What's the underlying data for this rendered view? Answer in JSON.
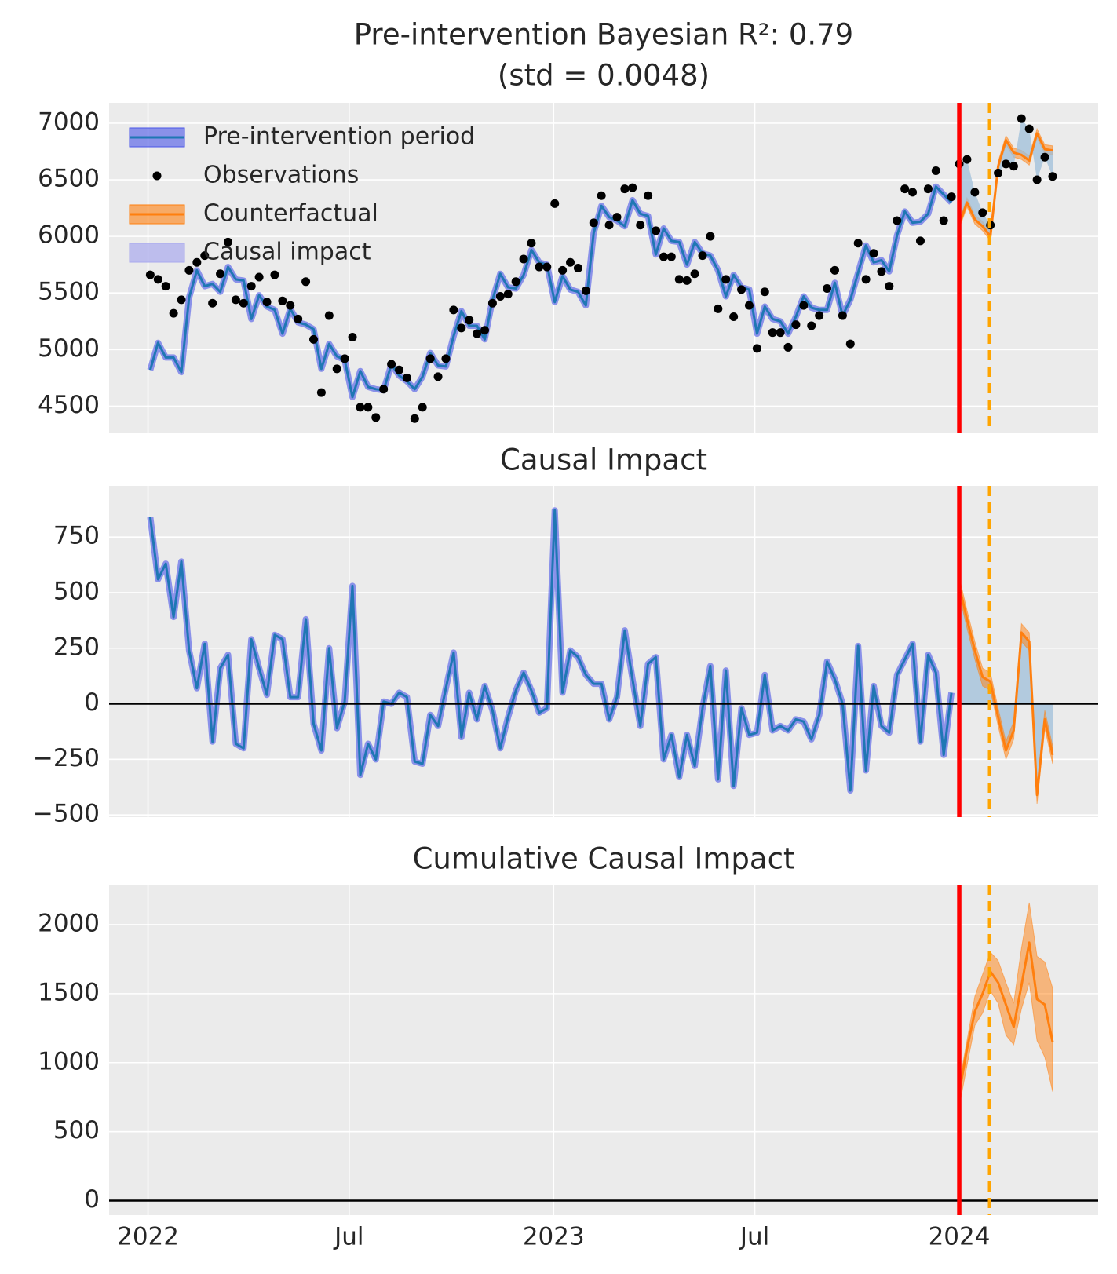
{
  "chart_data": [
    {
      "type": "line",
      "title": "Pre-intervention Bayesian R²: 0.79",
      "subtitle": "(std = 0.0048)",
      "x": [
        "2022-01-03",
        "2022-01-10",
        "2022-01-17",
        "2022-01-24",
        "2022-01-31",
        "2022-02-07",
        "2022-02-14",
        "2022-02-21",
        "2022-02-28",
        "2022-03-07",
        "2022-03-14",
        "2022-03-21",
        "2022-03-28",
        "2022-04-04",
        "2022-04-11",
        "2022-04-18",
        "2022-04-25",
        "2022-05-02",
        "2022-05-09",
        "2022-05-16",
        "2022-05-23",
        "2022-05-30",
        "2022-06-06",
        "2022-06-13",
        "2022-06-20",
        "2022-06-27",
        "2022-07-04",
        "2022-07-11",
        "2022-07-18",
        "2022-07-25",
        "2022-08-01",
        "2022-08-08",
        "2022-08-15",
        "2022-08-22",
        "2022-08-29",
        "2022-09-05",
        "2022-09-12",
        "2022-09-19",
        "2022-09-26",
        "2022-10-03",
        "2022-10-10",
        "2022-10-17",
        "2022-10-24",
        "2022-10-31",
        "2022-11-07",
        "2022-11-14",
        "2022-11-21",
        "2022-11-28",
        "2022-12-05",
        "2022-12-12",
        "2022-12-19",
        "2022-12-26",
        "2023-01-02",
        "2023-01-09",
        "2023-01-16",
        "2023-01-23",
        "2023-01-30",
        "2023-02-06",
        "2023-02-13",
        "2023-02-20",
        "2023-02-27",
        "2023-03-06",
        "2023-03-13",
        "2023-03-20",
        "2023-03-27",
        "2023-04-03",
        "2023-04-10",
        "2023-04-17",
        "2023-04-24",
        "2023-05-01",
        "2023-05-08",
        "2023-05-15",
        "2023-05-22",
        "2023-05-29",
        "2023-06-05",
        "2023-06-12",
        "2023-06-19",
        "2023-06-26",
        "2023-07-03",
        "2023-07-10",
        "2023-07-17",
        "2023-07-24",
        "2023-07-31",
        "2023-08-07",
        "2023-08-14",
        "2023-08-21",
        "2023-08-28",
        "2023-09-04",
        "2023-09-11",
        "2023-09-18",
        "2023-09-25",
        "2023-10-02",
        "2023-10-09",
        "2023-10-16",
        "2023-10-23",
        "2023-10-30",
        "2023-11-06",
        "2023-11-13",
        "2023-11-20",
        "2023-11-27",
        "2023-12-04",
        "2023-12-11",
        "2023-12-18",
        "2023-12-25",
        "2024-01-01",
        "2024-01-08",
        "2024-01-15",
        "2024-01-22",
        "2024-01-29",
        "2024-02-05",
        "2024-02-12",
        "2024-02-19",
        "2024-02-26",
        "2024-03-04",
        "2024-03-11",
        "2024-03-18",
        "2024-03-25"
      ],
      "xlim": [
        "2021-11-27",
        "2024-05-05"
      ],
      "xticks": [
        {
          "value": "2022-01-01",
          "label": "2022"
        },
        {
          "value": "2022-07-01",
          "label": "Jul"
        },
        {
          "value": "2023-01-01",
          "label": "2023"
        },
        {
          "value": "2023-07-01",
          "label": "Jul"
        },
        {
          "value": "2024-01-01",
          "label": "2024"
        }
      ],
      "ylim": [
        4260,
        7180
      ],
      "yticks": [
        4500,
        5000,
        5500,
        6000,
        6500,
        7000
      ],
      "grid": true,
      "legend": "upper left",
      "intervention_lines": [
        {
          "x": "2024-01-01",
          "color": "#ff0000",
          "linestyle": "solid"
        },
        {
          "x": "2024-01-28",
          "color": "#ffa500",
          "linestyle": "dashed"
        }
      ],
      "series": [
        {
          "name": "Pre-intervention period",
          "color": "#1f77b4",
          "band_color": "#4a55e8",
          "values": [
            4820,
            5060,
            4930,
            4930,
            4800,
            5460,
            5700,
            5560,
            5580,
            5510,
            5730,
            5620,
            5610,
            5270,
            5480,
            5380,
            5350,
            5140,
            5360,
            5240,
            5220,
            5180,
            4830,
            5050,
            4940,
            4910,
            4580,
            4810,
            4670,
            4650,
            4640,
            4870,
            4770,
            4720,
            4650,
            4760,
            4970,
            4860,
            4850,
            5120,
            5340,
            5210,
            5210,
            5090,
            5440,
            5670,
            5550,
            5540,
            5660,
            5880,
            5770,
            5750,
            5420,
            5650,
            5530,
            5510,
            5390,
            6030,
            6270,
            6170,
            6140,
            6090,
            6320,
            6200,
            6180,
            5840,
            6070,
            5960,
            5950,
            5750,
            5950,
            5850,
            5830,
            5700,
            5470,
            5660,
            5550,
            5530,
            5140,
            5380,
            5270,
            5250,
            5140,
            5290,
            5470,
            5370,
            5350,
            5350,
            5590,
            5300,
            5440,
            5680,
            5920,
            5770,
            5790,
            5690,
            6010,
            6220,
            6120,
            6130,
            6200,
            6440,
            6370,
            6300,
            null,
            null,
            null,
            null,
            null,
            null,
            null,
            null,
            null,
            null,
            null,
            null,
            null
          ]
        },
        {
          "name": "Observations",
          "type": "scatter",
          "color": "#000000",
          "values": [
            5660,
            5620,
            5560,
            5320,
            5440,
            5700,
            5770,
            5830,
            5410,
            5670,
            5950,
            5440,
            5410,
            5560,
            5640,
            5420,
            5660,
            5430,
            5390,
            5270,
            5600,
            5090,
            4620,
            5300,
            4830,
            4920,
            5110,
            4490,
            4490,
            4400,
            4650,
            4870,
            4820,
            4750,
            4390,
            4490,
            4920,
            4760,
            4920,
            5350,
            5190,
            5260,
            5140,
            5170,
            5410,
            5470,
            5490,
            5600,
            5800,
            5940,
            5730,
            5730,
            6290,
            5700,
            5770,
            5720,
            5520,
            6120,
            6360,
            6100,
            6170,
            6420,
            6430,
            6100,
            6360,
            6050,
            5820,
            5820,
            5620,
            5610,
            5670,
            5830,
            6000,
            5360,
            5620,
            5290,
            5530,
            5390,
            5010,
            5510,
            5150,
            5150,
            5020,
            5220,
            5390,
            5210,
            5300,
            5540,
            5700,
            5300,
            5050,
            5940,
            5620,
            5850,
            5690,
            5560,
            6140,
            6420,
            6390,
            5960,
            6420,
            6580,
            6140,
            6350,
            6640,
            6680,
            6390,
            6210,
            6100,
            6560,
            6640,
            6620,
            7040,
            6950,
            6500,
            6700,
            6530
          ]
        },
        {
          "name": "Counterfactual",
          "color": "#ff7f0e",
          "x": [
            "2024-01-01",
            "2024-01-08",
            "2024-01-15",
            "2024-01-22",
            "2024-01-29",
            "2024-02-05",
            "2024-02-12",
            "2024-02-19",
            "2024-02-26",
            "2024-03-04",
            "2024-03-11",
            "2024-03-18",
            "2024-03-25"
          ],
          "values": [
            6110,
            6300,
            6150,
            6090,
            6000,
            6620,
            6850,
            6740,
            6720,
            6670,
            6910,
            6770,
            6760
          ],
          "lower": [
            6070,
            6260,
            6110,
            6050,
            5960,
            6580,
            6810,
            6700,
            6680,
            6630,
            6870,
            6730,
            6720
          ],
          "upper": [
            6150,
            6340,
            6190,
            6130,
            6040,
            6660,
            6890,
            6780,
            6760,
            6710,
            6950,
            6810,
            6800
          ]
        },
        {
          "name": "Causal impact",
          "type": "area",
          "color": "#a9a9ee",
          "fill": "#9fbfda"
        }
      ]
    },
    {
      "type": "line",
      "title": "Causal Impact",
      "sharex": true,
      "ylim": [
        -510,
        980
      ],
      "yticks": [
        {
          "value": -500,
          "label": "−500"
        },
        {
          "value": -250,
          "label": "−250"
        },
        0,
        250,
        500,
        750
      ],
      "grid": true,
      "hline": 0,
      "series": [
        {
          "color": "#1f77b4",
          "band_color": "#4a55e8",
          "values": [
            840,
            560,
            630,
            390,
            640,
            240,
            70,
            270,
            -170,
            160,
            220,
            -180,
            -200,
            290,
            160,
            40,
            310,
            290,
            30,
            30,
            380,
            -90,
            -210,
            250,
            -110,
            10,
            530,
            -320,
            -180,
            -250,
            10,
            0,
            50,
            30,
            -260,
            -270,
            -50,
            -100,
            70,
            230,
            -150,
            50,
            -70,
            80,
            -30,
            -200,
            -60,
            60,
            140,
            60,
            -40,
            -20,
            870,
            50,
            240,
            210,
            130,
            90,
            90,
            -70,
            30,
            330,
            110,
            -100,
            180,
            210,
            -250,
            -140,
            -330,
            -140,
            -280,
            -20,
            170,
            -340,
            150,
            -370,
            -20,
            -140,
            -130,
            130,
            -120,
            -100,
            -120,
            -70,
            -80,
            -160,
            -50,
            190,
            110,
            0,
            -390,
            260,
            -300,
            80,
            -100,
            -130,
            130,
            200,
            270,
            -170,
            220,
            140,
            -230,
            50,
            null,
            null,
            null,
            null,
            null,
            null,
            null,
            null,
            null,
            null,
            null,
            null,
            null
          ]
        },
        {
          "color": "#ff7f0e",
          "fill": "#9fbfda",
          "fill_to_zero": true,
          "x": [
            "2024-01-01",
            "2024-01-08",
            "2024-01-15",
            "2024-01-22",
            "2024-01-29",
            "2024-02-05",
            "2024-02-12",
            "2024-02-19",
            "2024-02-26",
            "2024-03-04",
            "2024-03-11",
            "2024-03-18",
            "2024-03-25"
          ],
          "values": [
            530,
            380,
            240,
            120,
            100,
            -60,
            -210,
            -120,
            320,
            280,
            -410,
            -70,
            -230
          ],
          "lower": [
            490,
            340,
            200,
            80,
            60,
            -100,
            -250,
            -160,
            280,
            240,
            -450,
            -110,
            -270
          ],
          "upper": [
            570,
            420,
            280,
            160,
            140,
            -20,
            -170,
            -80,
            360,
            320,
            -370,
            -30,
            -190
          ]
        }
      ]
    },
    {
      "type": "line",
      "title": "Cumulative Causal Impact",
      "sharex": true,
      "ylim": [
        -105,
        2290
      ],
      "yticks": [
        0,
        500,
        1000,
        1500,
        2000
      ],
      "grid": true,
      "hline": 0,
      "series": [
        {
          "color": "#ff7f0e",
          "x": [
            "2024-01-01",
            "2024-01-08",
            "2024-01-15",
            "2024-01-22",
            "2024-01-29",
            "2024-02-05",
            "2024-02-12",
            "2024-02-19",
            "2024-02-26",
            "2024-03-04",
            "2024-03-11",
            "2024-03-18",
            "2024-03-25"
          ],
          "values": [
            780,
            1100,
            1370,
            1500,
            1660,
            1580,
            1420,
            1260,
            1560,
            1870,
            1460,
            1420,
            1150
          ],
          "lower": [
            680,
            980,
            1270,
            1360,
            1520,
            1430,
            1200,
            1130,
            1390,
            1580,
            1160,
            1040,
            790
          ],
          "upper": [
            850,
            1160,
            1480,
            1640,
            1800,
            1740,
            1580,
            1430,
            1830,
            2160,
            1770,
            1730,
            1540
          ]
        }
      ]
    }
  ]
}
